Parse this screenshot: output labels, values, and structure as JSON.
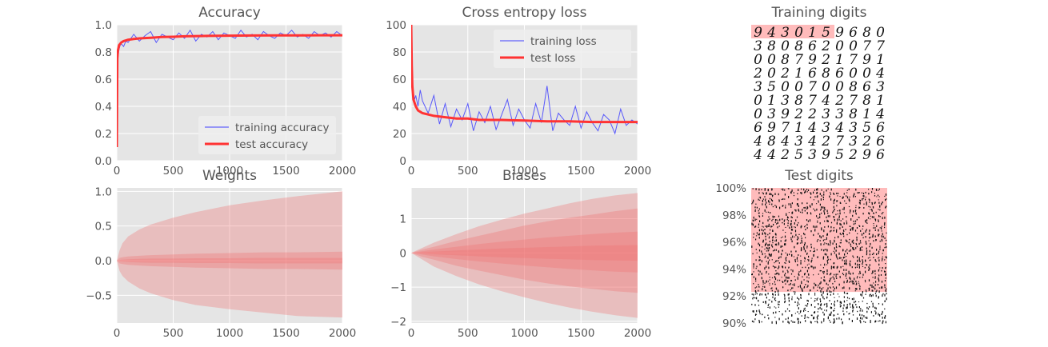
{
  "charts": [
    {
      "id": "accuracy",
      "type": "line",
      "title": "Accuracy",
      "xlim": [
        0,
        2000
      ],
      "ylim": [
        0,
        1.0
      ],
      "xticks": [
        "0",
        "500",
        "1000",
        "1500",
        "2000"
      ],
      "yticks": [
        "0.0",
        "0.2",
        "0.4",
        "0.6",
        "0.8",
        "1.0"
      ],
      "legend": {
        "position": "lower-right",
        "entries": [
          "training accuracy",
          "test accuracy"
        ]
      },
      "series": [
        {
          "name": "training accuracy",
          "color": "#4040ff",
          "x": [
            0,
            5,
            10,
            20,
            30,
            40,
            60,
            80,
            100,
            150,
            200,
            250,
            300,
            350,
            400,
            450,
            500,
            550,
            600,
            650,
            700,
            750,
            800,
            850,
            900,
            950,
            1000,
            1050,
            1100,
            1150,
            1200,
            1250,
            1300,
            1350,
            1400,
            1450,
            1500,
            1550,
            1600,
            1650,
            1700,
            1750,
            1800,
            1850,
            1900,
            1950,
            2000
          ],
          "y": [
            0.1,
            0.62,
            0.76,
            0.82,
            0.85,
            0.86,
            0.84,
            0.88,
            0.87,
            0.93,
            0.88,
            0.92,
            0.95,
            0.87,
            0.93,
            0.91,
            0.89,
            0.94,
            0.9,
            0.96,
            0.88,
            0.93,
            0.91,
            0.95,
            0.89,
            0.94,
            0.92,
            0.9,
            0.96,
            0.91,
            0.93,
            0.89,
            0.95,
            0.92,
            0.9,
            0.94,
            0.92,
            0.96,
            0.91,
            0.93,
            0.9,
            0.95,
            0.92,
            0.94,
            0.91,
            0.95,
            0.92
          ]
        },
        {
          "name": "test accuracy",
          "color": "#ff3333",
          "x": [
            0,
            5,
            10,
            20,
            40,
            60,
            80,
            100,
            150,
            200,
            300,
            400,
            500,
            600,
            800,
            1000,
            1200,
            1400,
            1600,
            1800,
            2000
          ],
          "y": [
            0.1,
            0.75,
            0.81,
            0.85,
            0.87,
            0.88,
            0.885,
            0.89,
            0.895,
            0.9,
            0.905,
            0.91,
            0.912,
            0.915,
            0.918,
            0.92,
            0.921,
            0.922,
            0.922,
            0.923,
            0.923
          ]
        }
      ]
    },
    {
      "id": "cross-entropy",
      "type": "line",
      "title": "Cross entropy loss",
      "xlim": [
        0,
        2000
      ],
      "ylim": [
        0,
        100
      ],
      "xticks": [
        "0",
        "500",
        "1000",
        "1500",
        "2000"
      ],
      "yticks": [
        "0",
        "20",
        "40",
        "60",
        "80",
        "100"
      ],
      "legend": {
        "position": "upper-right",
        "entries": [
          "training loss",
          "test loss"
        ]
      },
      "series": [
        {
          "name": "training loss",
          "color": "#4040ff",
          "x": [
            0,
            5,
            10,
            20,
            30,
            40,
            60,
            80,
            100,
            150,
            200,
            250,
            300,
            350,
            400,
            450,
            500,
            550,
            600,
            650,
            700,
            750,
            800,
            850,
            900,
            950,
            1000,
            1050,
            1100,
            1150,
            1200,
            1250,
            1300,
            1350,
            1400,
            1450,
            1500,
            1550,
            1600,
            1650,
            1700,
            1750,
            1800,
            1850,
            1900,
            1950,
            2000
          ],
          "y": [
            100,
            75,
            58,
            50,
            45,
            48,
            40,
            52,
            44,
            35,
            48,
            27,
            42,
            25,
            38,
            30,
            42,
            22,
            36,
            28,
            40,
            23,
            34,
            45,
            26,
            38,
            30,
            24,
            42,
            28,
            55,
            22,
            35,
            30,
            26,
            40,
            24,
            36,
            28,
            22,
            34,
            30,
            20,
            38,
            26,
            30,
            27
          ]
        },
        {
          "name": "test loss",
          "color": "#ff3333",
          "x": [
            0,
            5,
            10,
            20,
            40,
            60,
            80,
            100,
            150,
            200,
            300,
            400,
            500,
            600,
            800,
            1000,
            1200,
            1400,
            1600,
            1800,
            2000
          ],
          "y": [
            100,
            70,
            55,
            45,
            40,
            37,
            36,
            35,
            34,
            33,
            32,
            31,
            31,
            30,
            30,
            29.5,
            29,
            29,
            28.5,
            28.5,
            28.5
          ]
        }
      ]
    },
    {
      "id": "training-digits",
      "type": "image-grid",
      "title": "Training digits",
      "rows": [
        "9430159680",
        "3808620077",
        "0087921791",
        "2021686004",
        "3500700863",
        "0138742781",
        "0392233814",
        "6971434356",
        "4843427326",
        "4425395296"
      ],
      "highlight": {
        "row": 0,
        "count": 6,
        "color": "#ffbbbb"
      }
    },
    {
      "id": "weights",
      "type": "area",
      "title": "Weights",
      "xlim": [
        0,
        2000
      ],
      "ylim": [
        -0.9,
        1.05
      ],
      "xticks": [
        "0",
        "500",
        "1000",
        "1500",
        "2000"
      ],
      "yticks": [
        "−0.5",
        "0.0",
        "0.5",
        "1.0"
      ],
      "ytick_values": [
        -0.5,
        0.0,
        0.5,
        1.0
      ],
      "x": [
        0,
        25,
        50,
        100,
        200,
        300,
        500,
        700,
        1000,
        1300,
        1600,
        2000
      ],
      "bands": [
        {
          "upper": [
            0.0,
            0.15,
            0.25,
            0.35,
            0.45,
            0.52,
            0.62,
            0.7,
            0.8,
            0.87,
            0.93,
            1.0
          ],
          "lower": [
            0.0,
            -0.15,
            -0.22,
            -0.3,
            -0.4,
            -0.47,
            -0.57,
            -0.64,
            -0.7,
            -0.75,
            -0.8,
            -0.82
          ]
        },
        {
          "upper": [
            0.0,
            0.04,
            0.05,
            0.06,
            0.07,
            0.08,
            0.09,
            0.1,
            0.11,
            0.12,
            0.12,
            0.13
          ],
          "lower": [
            0.0,
            -0.04,
            -0.05,
            -0.06,
            -0.07,
            -0.08,
            -0.09,
            -0.1,
            -0.11,
            -0.12,
            -0.12,
            -0.13
          ]
        },
        {
          "upper": [
            0.0,
            0.01,
            0.015,
            0.02,
            0.025,
            0.03,
            0.03,
            0.035,
            0.035,
            0.04,
            0.04,
            0.04
          ],
          "lower": [
            0.0,
            -0.01,
            -0.015,
            -0.02,
            -0.025,
            -0.03,
            -0.03,
            -0.035,
            -0.035,
            -0.04,
            -0.04,
            -0.04
          ]
        }
      ]
    },
    {
      "id": "biases",
      "type": "area",
      "title": "Biases",
      "xlim": [
        0,
        2000
      ],
      "ylim": [
        -2.05,
        1.9
      ],
      "xticks": [
        "0",
        "500",
        "1000",
        "1500",
        "2000"
      ],
      "yticks": [
        "−2",
        "−1",
        "0",
        "1"
      ],
      "ytick_values": [
        -2,
        -1,
        0,
        1
      ],
      "x": [
        0,
        100,
        200,
        400,
        600,
        800,
        1000,
        1200,
        1400,
        1600,
        1800,
        2000
      ],
      "bands": [
        {
          "upper": [
            0,
            0.15,
            0.3,
            0.55,
            0.78,
            0.97,
            1.15,
            1.3,
            1.45,
            1.58,
            1.68,
            1.75
          ],
          "lower": [
            0,
            -0.2,
            -0.4,
            -0.68,
            -0.92,
            -1.12,
            -1.3,
            -1.46,
            -1.6,
            -1.72,
            -1.82,
            -1.9
          ]
        },
        {
          "upper": [
            0,
            0.1,
            0.18,
            0.35,
            0.5,
            0.65,
            0.8,
            0.92,
            1.03,
            1.12,
            1.22,
            1.3
          ],
          "lower": [
            0,
            -0.12,
            -0.2,
            -0.38,
            -0.52,
            -0.65,
            -0.78,
            -0.89,
            -0.98,
            -1.05,
            -1.12,
            -1.17
          ]
        },
        {
          "upper": [
            0,
            0.05,
            0.1,
            0.18,
            0.26,
            0.33,
            0.39,
            0.45,
            0.5,
            0.55,
            0.59,
            0.62
          ],
          "lower": [
            0,
            -0.05,
            -0.1,
            -0.18,
            -0.25,
            -0.31,
            -0.37,
            -0.42,
            -0.47,
            -0.51,
            -0.55,
            -0.57
          ]
        },
        {
          "upper": [
            0,
            0.02,
            0.04,
            0.07,
            0.1,
            0.13,
            0.15,
            0.17,
            0.19,
            0.21,
            0.22,
            0.23
          ],
          "lower": [
            0,
            -0.02,
            -0.04,
            -0.07,
            -0.1,
            -0.13,
            -0.15,
            -0.17,
            -0.19,
            -0.21,
            -0.22,
            -0.23
          ]
        }
      ]
    },
    {
      "id": "test-digits",
      "type": "image-grid",
      "title": "Test digits",
      "ylim": [
        90,
        100
      ],
      "yticks": [
        "100%",
        "98%",
        "96%",
        "94%",
        "92%",
        "90%"
      ],
      "ytick_values": [
        100,
        98,
        96,
        94,
        92,
        90
      ],
      "highlight_top_fraction": 0.77,
      "highlight_color": "#ffbbbb"
    }
  ],
  "colors": {
    "plot_background": "#e5e5e5",
    "grid": "#ffffff",
    "training_line": "#4040ff",
    "test_line": "#ff3333",
    "band_fill": "#f07070"
  }
}
